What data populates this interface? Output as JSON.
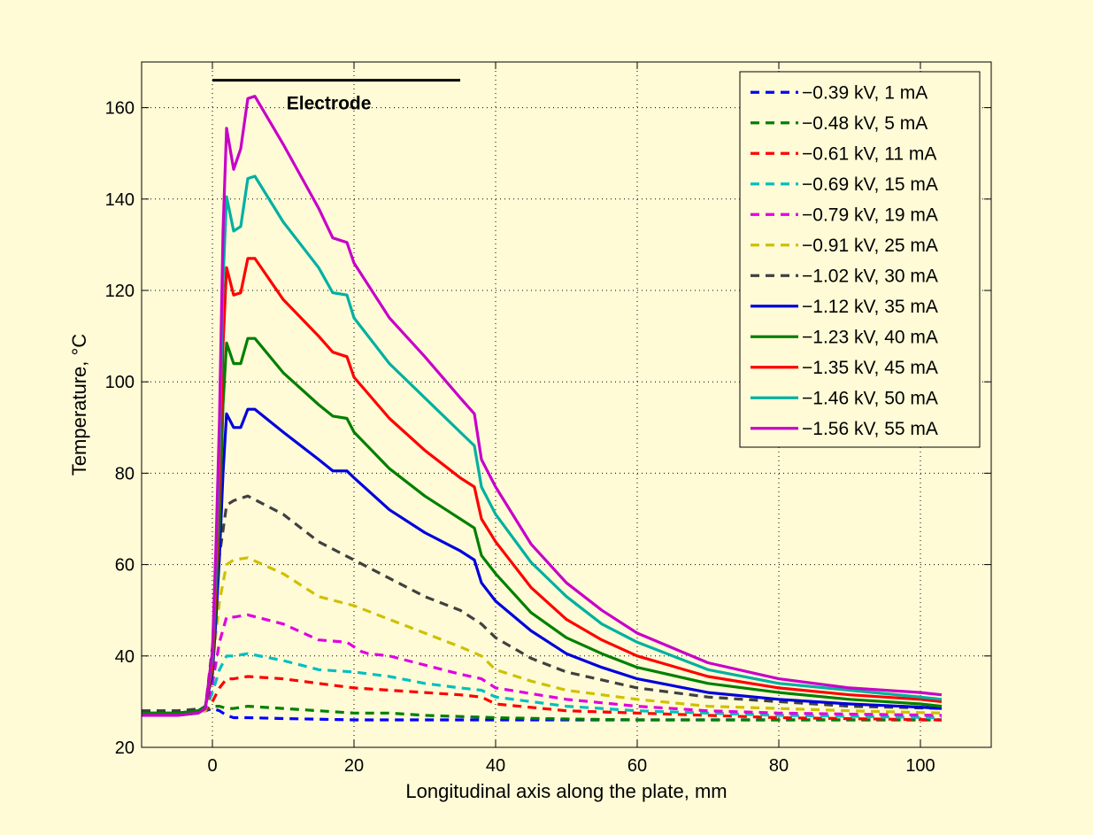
{
  "chart_data": {
    "type": "line",
    "title": "",
    "xlabel": "Longitudinal axis along the plate, mm",
    "ylabel": "Temperature, °C",
    "xlim": [
      -10,
      110
    ],
    "ylim": [
      20,
      170
    ],
    "xticks": [
      0,
      20,
      40,
      60,
      80,
      100
    ],
    "xtick_labels": [
      "0",
      "20",
      "40",
      "60",
      "80",
      "100"
    ],
    "yticks": [
      20,
      40,
      60,
      80,
      100,
      120,
      140,
      160
    ],
    "ytick_labels": [
      "20",
      "40",
      "60",
      "80",
      "100",
      "120",
      "140",
      "160"
    ],
    "grid": true,
    "legend_position": "top-right",
    "annotation": {
      "text": "Electrode",
      "x_start": 0,
      "x_end": 35,
      "y": 166
    },
    "series": [
      {
        "name": "−0.39 kV, 1 mA",
        "color": "#0000ff",
        "dashed": true,
        "x": [
          -10,
          -5,
          -1,
          0,
          1,
          2,
          3,
          5,
          10,
          20,
          30,
          40,
          60,
          103
        ],
        "y": [
          28,
          28,
          28,
          28.5,
          28,
          27,
          26.5,
          26.5,
          26.3,
          26,
          26,
          26,
          26,
          26
        ]
      },
      {
        "name": "−0.48 kV, 5 mA",
        "color": "#008000",
        "dashed": true,
        "x": [
          -10,
          -5,
          -1,
          0,
          1,
          2,
          3,
          5,
          10,
          15,
          20,
          25,
          30,
          40,
          50,
          60,
          103
        ],
        "y": [
          28,
          28,
          28,
          29,
          29,
          28.5,
          28.5,
          29,
          28.5,
          28,
          27.5,
          27.5,
          27,
          26.5,
          26.2,
          26,
          26
        ]
      },
      {
        "name": "−0.61 kV, 11 mA",
        "color": "#ff0000",
        "dashed": true,
        "x": [
          -10,
          -5,
          -1,
          0,
          1,
          2,
          3,
          5,
          10,
          15,
          20,
          25,
          30,
          35,
          38,
          40,
          50,
          60,
          70,
          80,
          103
        ],
        "y": [
          28,
          28,
          28,
          30,
          33,
          35,
          35,
          35.5,
          35,
          34,
          33,
          32.5,
          32,
          31.5,
          31,
          29.5,
          28,
          27.5,
          27,
          26.5,
          26
        ]
      },
      {
        "name": "−0.69 kV, 15 mA",
        "color": "#00bfbf",
        "dashed": true,
        "x": [
          -10,
          -5,
          -1,
          0,
          1,
          2,
          3,
          5,
          10,
          15,
          20,
          25,
          30,
          35,
          38,
          40,
          50,
          60,
          70,
          80,
          103
        ],
        "y": [
          28,
          28,
          28,
          32,
          37,
          40,
          40,
          40.5,
          39,
          37,
          36.5,
          35.5,
          34,
          33,
          32.5,
          31,
          29,
          28,
          27.5,
          27,
          26.5
        ]
      },
      {
        "name": "−0.79 kV, 19 mA",
        "color": "#e000e0",
        "dashed": true,
        "x": [
          -10,
          -5,
          -1,
          0,
          1,
          2,
          3,
          5,
          10,
          15,
          19,
          20,
          21,
          22,
          25,
          30,
          35,
          38,
          40,
          50,
          60,
          70,
          80,
          103
        ],
        "y": [
          28,
          28,
          28,
          34,
          43,
          48.5,
          48.5,
          49,
          47,
          43.5,
          43,
          42,
          41,
          40.5,
          40,
          38,
          36,
          35,
          33,
          30.5,
          29,
          28,
          27.5,
          27
        ]
      },
      {
        "name": "−0.91 kV, 25 mA",
        "color": "#cfc000",
        "dashed": true,
        "x": [
          -10,
          -5,
          -1,
          0,
          1,
          2,
          3,
          5,
          10,
          15,
          20,
          25,
          30,
          35,
          38,
          40,
          45,
          50,
          60,
          70,
          80,
          90,
          103
        ],
        "y": [
          28,
          28,
          28,
          38,
          52,
          60,
          61,
          61.5,
          58,
          53,
          51,
          48,
          45,
          42,
          40,
          37,
          34.5,
          32.5,
          30.5,
          29,
          28.5,
          28,
          27.5
        ]
      },
      {
        "name": "−1.02 kV, 30 mA",
        "color": "#404040",
        "dashed": true,
        "x": [
          -10,
          -5,
          -1,
          0,
          1,
          2,
          3,
          5,
          10,
          15,
          20,
          25,
          30,
          35,
          38,
          40,
          45,
          50,
          60,
          70,
          80,
          90,
          103
        ],
        "y": [
          28,
          28,
          28.5,
          42,
          62,
          73,
          74,
          75,
          71,
          65,
          61,
          57,
          53,
          50,
          47,
          44,
          39.5,
          36.5,
          33,
          31,
          30,
          29,
          28.5
        ]
      },
      {
        "name": "−1.12 kV, 35 mA",
        "color": "#0000dd",
        "dashed": false,
        "x": [
          -10,
          -5,
          -2,
          -1,
          0,
          0.5,
          1,
          1.5,
          2,
          3,
          4,
          5,
          6,
          10,
          15,
          17,
          19,
          20,
          25,
          30,
          35,
          37,
          38,
          40,
          45,
          50,
          55,
          60,
          70,
          80,
          90,
          100,
          103
        ],
        "y": [
          27.5,
          27.5,
          28,
          29,
          36,
          48,
          62,
          80,
          93,
          90,
          90,
          94,
          94,
          89,
          83,
          80.5,
          80.5,
          79,
          72,
          67,
          63,
          61,
          56,
          52,
          45.5,
          40.5,
          37.5,
          35,
          32,
          30.5,
          29.5,
          28.8,
          28.5
        ]
      },
      {
        "name": "−1.23 kV, 40 mA",
        "color": "#008000",
        "dashed": false,
        "x": [
          -10,
          -5,
          -2,
          -1,
          0,
          0.5,
          1,
          1.5,
          2,
          3,
          4,
          5,
          6,
          10,
          15,
          17,
          19,
          20,
          25,
          30,
          35,
          37,
          38,
          40,
          45,
          50,
          55,
          60,
          70,
          80,
          90,
          100,
          103
        ],
        "y": [
          27.5,
          27.5,
          28,
          29,
          37,
          52,
          70,
          95,
          108.5,
          104,
          104,
          109.5,
          109.5,
          102,
          95,
          92.5,
          92,
          89,
          81,
          75,
          70,
          68,
          62,
          58,
          49.5,
          44,
          40.5,
          37.5,
          34,
          32,
          30.5,
          29.5,
          29
        ]
      },
      {
        "name": "−1.35 kV, 45 mA",
        "color": "#ff0000",
        "dashed": false,
        "x": [
          -10,
          -5,
          -2,
          -1,
          0,
          0.5,
          1,
          1.5,
          2,
          3,
          4,
          5,
          6,
          10,
          15,
          17,
          19,
          20,
          25,
          30,
          35,
          37,
          38,
          40,
          45,
          50,
          55,
          60,
          70,
          80,
          90,
          100,
          103
        ],
        "y": [
          27,
          27,
          27.5,
          28.5,
          38,
          56,
          78,
          108,
          125,
          119,
          119.5,
          127,
          127,
          118,
          110,
          106.5,
          105.5,
          101,
          92,
          85,
          79,
          77,
          70,
          65,
          55,
          48,
          43.5,
          40,
          35.5,
          33,
          31.5,
          30.5,
          30
        ]
      },
      {
        "name": "−1.46 kV, 50 mA",
        "color": "#00b0a0",
        "dashed": false,
        "x": [
          -10,
          -5,
          -2,
          -1,
          0,
          0.5,
          1,
          1.5,
          2,
          3,
          4,
          5,
          6,
          10,
          15,
          17,
          19,
          20,
          25,
          30,
          35,
          37,
          38,
          40,
          45,
          50,
          55,
          60,
          70,
          80,
          90,
          100,
          103
        ],
        "y": [
          27,
          27,
          27.5,
          28.5,
          40,
          60,
          86,
          122,
          140.5,
          133,
          134,
          144.5,
          145,
          135,
          125,
          119.5,
          119,
          114,
          104,
          96.5,
          89,
          86,
          77,
          71,
          60.5,
          53,
          47,
          43,
          37,
          34,
          32.5,
          31,
          30.5
        ]
      },
      {
        "name": "−1.56 kV, 55 mA",
        "color": "#c800c8",
        "dashed": false,
        "x": [
          -10,
          -5,
          -2,
          -1,
          0,
          0.5,
          1,
          1.5,
          2,
          3,
          4,
          5,
          6,
          10,
          15,
          17,
          19,
          20,
          25,
          30,
          35,
          37,
          38,
          40,
          45,
          50,
          55,
          60,
          70,
          80,
          90,
          100,
          103
        ],
        "y": [
          27,
          27,
          27.5,
          28.5,
          41,
          64,
          92,
          133,
          155.5,
          146.5,
          151,
          162,
          162.5,
          152,
          138,
          131.5,
          130.5,
          126,
          114,
          105.5,
          96.5,
          93,
          83,
          77,
          64.5,
          56,
          50,
          45,
          38.5,
          35,
          33,
          32,
          31.5
        ]
      }
    ]
  }
}
